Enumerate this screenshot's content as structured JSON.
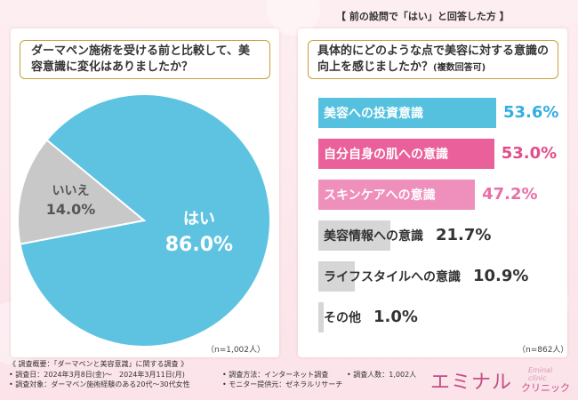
{
  "left": {
    "question": "ダーマペン施術を受ける前と比較して、美容意識に変化はありましたか？",
    "n_label": "（n=1,002人）"
  },
  "right": {
    "header": "【 前の設問で「はい」と回答した方 】",
    "question": "具体的にどのような点で美容に対する意識の向上を感じましたか？",
    "question_note": "(複数回答可)",
    "n_label": "（n=862人）"
  },
  "colors": {
    "pie_yes": "#5ec3e1",
    "pie_no": "#c8c8c8",
    "bar_1": "#55c1df",
    "bar_2": "#e9609a",
    "bar_3": "#ef8fbb",
    "bar_other": "#d6d6d6",
    "value_1": "#33aee0",
    "value_2": "#e34d8a",
    "value_3": "#ea6fa7",
    "value_other": "#333333"
  },
  "chart_data": [
    {
      "type": "pie",
      "slices": [
        {
          "label": "はい",
          "value": 86.0,
          "display": "86.0%"
        },
        {
          "label": "いいえ",
          "value": 14.0,
          "display": "14.0%"
        }
      ]
    },
    {
      "type": "bar",
      "orientation": "horizontal",
      "categories": [
        "美容への投資意識",
        "自分自身の肌への意識",
        "スキンケアへの意識",
        "美容情報への意識",
        "ライフスタイルへの意識",
        "その他"
      ],
      "values": [
        53.6,
        53.0,
        47.2,
        21.7,
        10.9,
        1.0
      ],
      "value_labels": [
        "53.6%",
        "53.0%",
        "47.2%",
        "21.7%",
        "10.9%",
        "1.0%"
      ]
    }
  ],
  "footer": {
    "title": "《 調査概要：「ダーマペンと美容意識」に関する調査 》",
    "date": "• 調査日：2024年3月8日(金)～　2024年3月11日(月)",
    "method": "• 調査方法：インターネット調査",
    "count": "• 調査人数：1,002人",
    "target": "• 調査対象：ダーマペン施術経験のある20代～30代女性",
    "provider": "• モニター提供元：ゼネラルリサーチ"
  },
  "logo": {
    "main": "エミナル",
    "sub": "クリニック",
    "tag": "Eminal clinic"
  }
}
